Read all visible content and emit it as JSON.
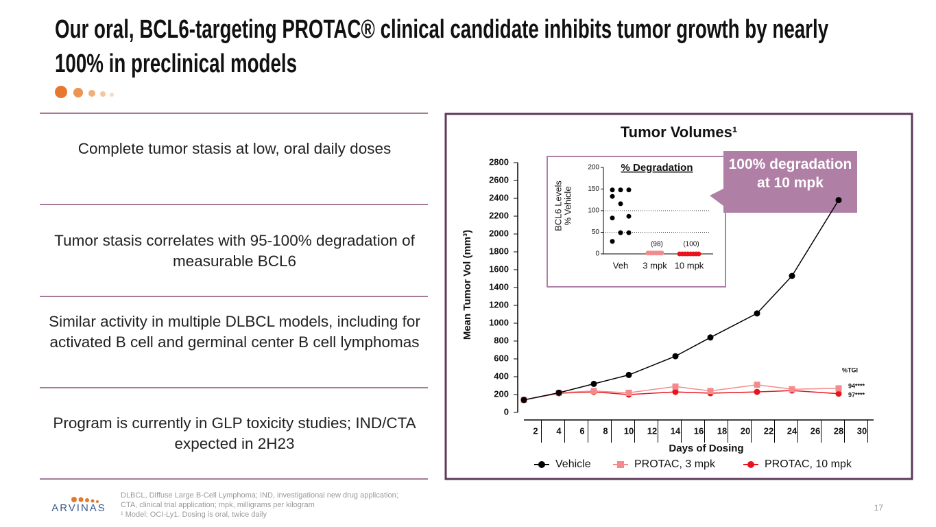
{
  "header": {
    "title": "Our oral, BCL6-targeting PROTAC® clinical candidate inhibits tumor growth by nearly 100% in preclinical models"
  },
  "points": [
    "Complete tumor stasis at low, oral daily doses",
    "Tumor stasis correlates with 95-100% degradation of measurable BCL6",
    "Similar activity in multiple DLBCL models, including for activated B cell and germinal center B cell lymphomas",
    "Program is currently in GLP toxicity studies; IND/CTA expected in 2H23"
  ],
  "footnotes": [
    "DLBCL, Diffuse Large B-Cell Lymphoma; IND, investigational new drug application; CTA, clinical trial application; mpk, milligrams per kilogram",
    "¹ Model: OCI-Ly1. Dosing is oral, twice daily"
  ],
  "logo": "ARVINAS",
  "page_number": "17",
  "chart_data": [
    {
      "type": "line",
      "title": "Tumor Volumes¹",
      "xlabel": "Days of Dosing",
      "ylabel": "Mean Tumor Vol (mm³)",
      "x": [
        1,
        4,
        7,
        10,
        14,
        17,
        21,
        24,
        28
      ],
      "series": [
        {
          "name": "Vehicle",
          "color": "#000000",
          "marker": "circle",
          "values": [
            140,
            220,
            320,
            420,
            630,
            840,
            1110,
            1530,
            2380
          ]
        },
        {
          "name": "PROTAC, 3 mpk",
          "color": "#f28b8e",
          "marker": "square",
          "values": [
            140,
            220,
            240,
            220,
            290,
            240,
            310,
            260,
            270
          ]
        },
        {
          "name": "PROTAC, 10 mpk",
          "color": "#e8141b",
          "marker": "circle",
          "values": [
            140,
            215,
            230,
            200,
            230,
            215,
            230,
            245,
            210
          ]
        }
      ],
      "xlim": [
        0,
        31
      ],
      "xticks": [
        2,
        4,
        6,
        8,
        10,
        12,
        14,
        16,
        18,
        20,
        22,
        24,
        26,
        28,
        30
      ],
      "ylim": [
        0,
        2800
      ],
      "yticks": [
        0,
        200,
        400,
        600,
        800,
        1000,
        1200,
        1400,
        1600,
        1800,
        2000,
        2200,
        2400,
        2600,
        2800
      ],
      "annotations": [
        "%TGI",
        "94****",
        "97****"
      ],
      "callout": "100% degradation at 10 mpk"
    },
    {
      "type": "strip",
      "title": "% Degradation",
      "ylabel": [
        "BCL6 Levels",
        "% Vehicle"
      ],
      "categories": [
        "Veh",
        "3 mpk",
        "10 mpk"
      ],
      "values": [
        [
          148,
          148,
          148,
          133,
          116,
          87,
          83,
          49,
          49,
          29
        ],
        [
          2,
          2,
          2,
          2,
          2,
          2
        ],
        [
          0,
          0,
          0,
          0,
          0,
          0,
          0,
          0
        ]
      ],
      "ylim": [
        0,
        200
      ],
      "yticks": [
        0,
        50,
        100,
        150,
        200
      ],
      "annotations": [
        "(98)",
        "(100)"
      ]
    }
  ]
}
